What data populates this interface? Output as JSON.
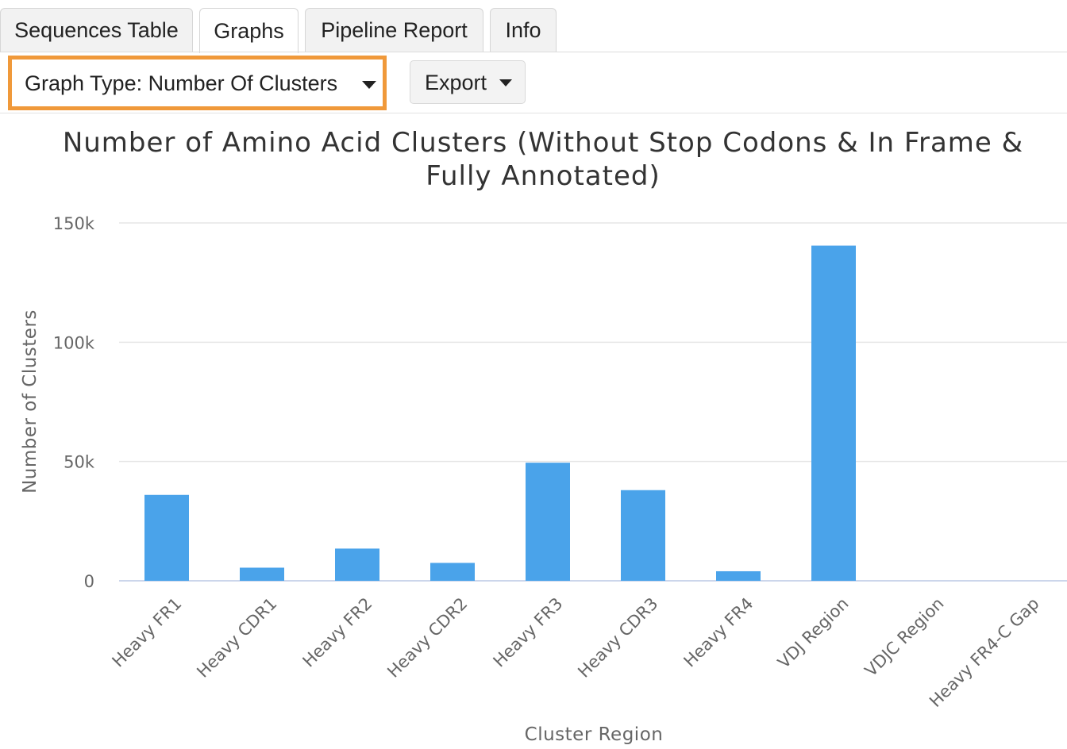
{
  "tabs": [
    {
      "label": "Sequences Table",
      "active": false
    },
    {
      "label": "Graphs",
      "active": true
    },
    {
      "label": "Pipeline Report",
      "active": false
    },
    {
      "label": "Info",
      "active": false
    }
  ],
  "toolbar": {
    "graph_type_label": "Graph Type: Number Of Clusters",
    "export_label": "Export",
    "highlight_color": "#f0993a"
  },
  "chart_data": {
    "type": "bar",
    "title_lines": [
      "Number of Amino Acid Clusters (Without Stop Codons & In Frame &",
      "Fully Annotated)"
    ],
    "xlabel": "Cluster Region",
    "ylabel": "Number of Clusters",
    "ylim": [
      0,
      150000
    ],
    "yticks": [
      0,
      50000,
      100000,
      150000
    ],
    "ytick_labels": [
      "0",
      "50k",
      "100k",
      "150k"
    ],
    "categories": [
      "Heavy FR1",
      "Heavy CDR1",
      "Heavy FR2",
      "Heavy CDR2",
      "Heavy FR3",
      "Heavy CDR3",
      "Heavy FR4",
      "VDJ Region",
      "VDJC Region",
      "Heavy FR4-C Gap"
    ],
    "values": [
      36000,
      5500,
      13500,
      7500,
      49500,
      38000,
      4000,
      140500,
      0,
      0
    ],
    "bar_color": "#4aa3ea",
    "grid": true
  }
}
